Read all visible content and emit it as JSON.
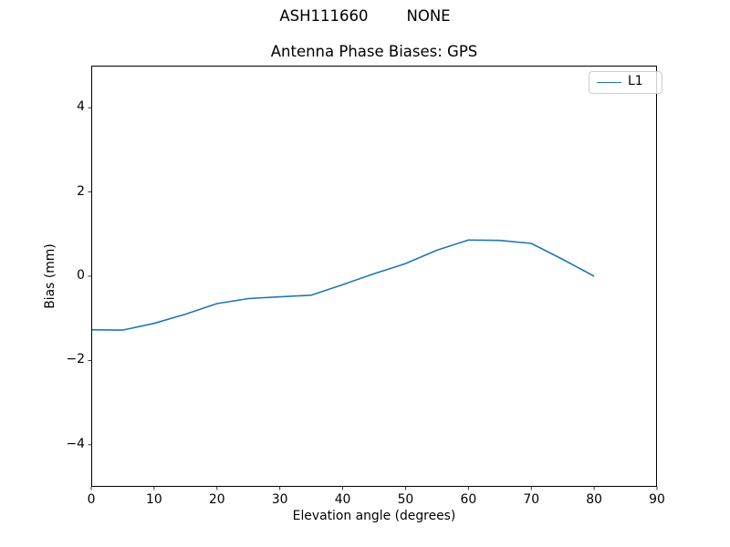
{
  "figure": {
    "suptitle": "ASH111660        NONE"
  },
  "chart_data": {
    "type": "line",
    "title": "Antenna Phase Biases: GPS",
    "xlabel": "Elevation angle (degrees)",
    "ylabel": "Bias (mm)",
    "xlim": [
      0,
      90
    ],
    "ylim": [
      -5,
      5
    ],
    "grid": false,
    "legend_position": "upper right",
    "x_ticks": [
      0,
      10,
      20,
      30,
      40,
      50,
      60,
      70,
      80,
      90
    ],
    "x_tick_labels": [
      "0",
      "10",
      "20",
      "30",
      "40",
      "50",
      "60",
      "70",
      "80",
      "90"
    ],
    "y_ticks": [
      -4,
      -2,
      0,
      2,
      4
    ],
    "y_tick_labels": [
      "−4",
      "−2",
      "0",
      "2",
      "4"
    ],
    "series": [
      {
        "name": "L1",
        "color": "#1f77b4",
        "x": [
          0,
          5,
          10,
          15,
          20,
          25,
          30,
          35,
          40,
          45,
          50,
          55,
          60,
          65,
          70,
          75,
          80
        ],
        "y": [
          -1.27,
          -1.28,
          -1.12,
          -0.9,
          -0.65,
          -0.53,
          -0.49,
          -0.45,
          -0.2,
          0.06,
          0.3,
          0.62,
          0.86,
          0.85,
          0.78,
          0.4,
          0.0
        ]
      }
    ],
    "colors": {
      "axes_border": "#000000",
      "legend_border": "#cccccc",
      "background": "#ffffff"
    }
  }
}
